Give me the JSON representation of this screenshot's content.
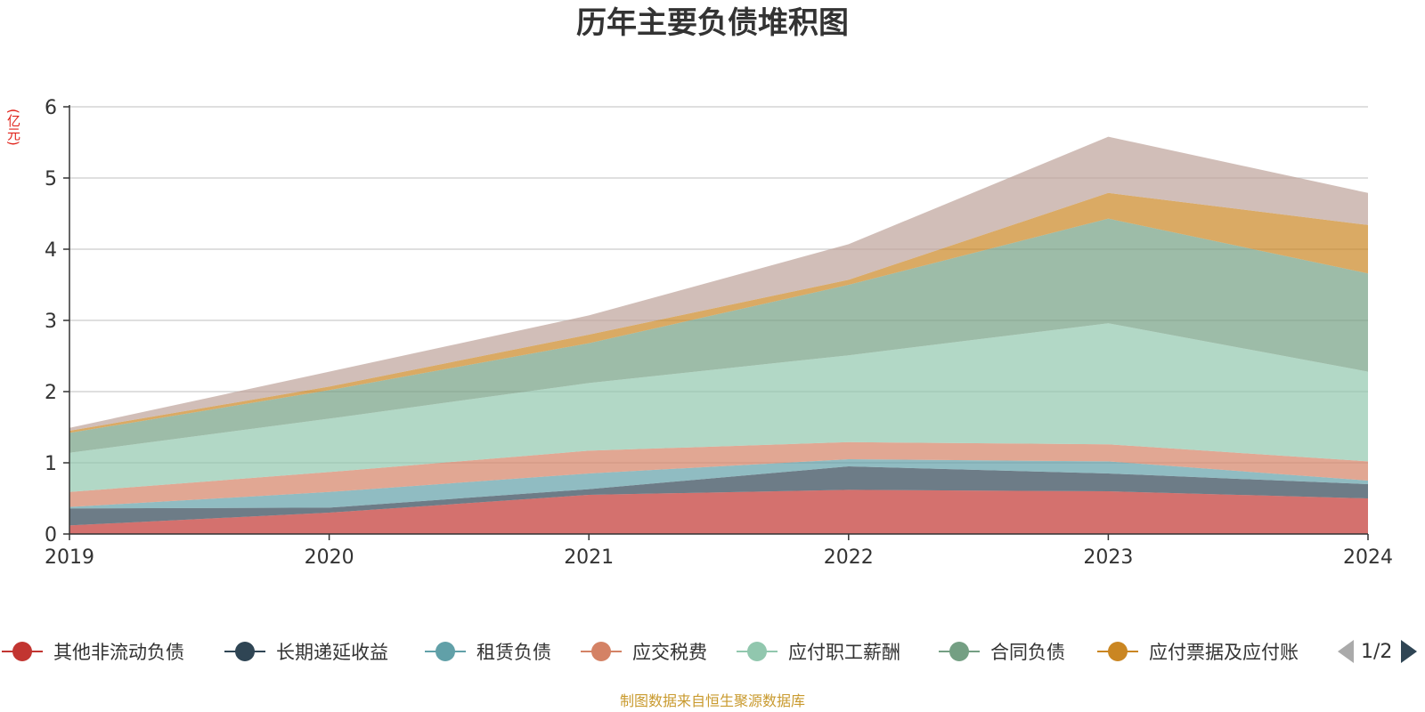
{
  "chart_data": {
    "type": "area",
    "stacked": true,
    "title": "历年主要负债堆积图",
    "unit": "(亿元)",
    "categories": [
      "2019",
      "2020",
      "2021",
      "2022",
      "2023",
      "2024"
    ],
    "ylim": [
      0,
      6
    ],
    "yticks": [
      0,
      1,
      2,
      3,
      4,
      5,
      6
    ],
    "grid": true,
    "legend_position": "bottom",
    "series": [
      {
        "name": "其他非流动负债",
        "color": "#c23531",
        "values": [
          0.12,
          0.3,
          0.55,
          0.62,
          0.6,
          0.5
        ]
      },
      {
        "name": "长期递延收益",
        "color": "#2f4554",
        "values": [
          0.24,
          0.07,
          0.08,
          0.33,
          0.25,
          0.2
        ]
      },
      {
        "name": "租赁负债",
        "color": "#61a0a8",
        "values": [
          0.02,
          0.22,
          0.22,
          0.1,
          0.17,
          0.05
        ]
      },
      {
        "name": "应交税费",
        "color": "#d48265",
        "values": [
          0.21,
          0.28,
          0.32,
          0.24,
          0.24,
          0.27
        ]
      },
      {
        "name": "应付职工薪酬",
        "color": "#91c7ae",
        "values": [
          0.55,
          0.75,
          0.95,
          1.22,
          1.7,
          1.26
        ]
      },
      {
        "name": "合同负债",
        "color": "#749f83",
        "values": [
          0.28,
          0.4,
          0.56,
          0.99,
          1.47,
          1.38
        ]
      },
      {
        "name": "应付票据及应付账款",
        "color": "#ca8622",
        "values": [
          0.03,
          0.05,
          0.12,
          0.07,
          0.36,
          0.68
        ]
      },
      {
        "name": "",
        "color": "#bda29a",
        "values": [
          0.04,
          0.21,
          0.27,
          0.5,
          0.79,
          0.45
        ]
      }
    ]
  },
  "legend": {
    "items": [
      {
        "label": "其他非流动负债",
        "color": "#c23531"
      },
      {
        "label": "长期递延收益",
        "color": "#2f4554"
      },
      {
        "label": "租赁负债",
        "color": "#61a0a8"
      },
      {
        "label": "应交税费",
        "color": "#d48265"
      },
      {
        "label": "应付职工薪酬",
        "color": "#91c7ae"
      },
      {
        "label": "合同负债",
        "color": "#749f83"
      },
      {
        "label": "应付票据及应付账",
        "color": "#ca8622"
      }
    ],
    "page_indicator": "1/2"
  },
  "source": "制图数据来自恒生聚源数据库"
}
